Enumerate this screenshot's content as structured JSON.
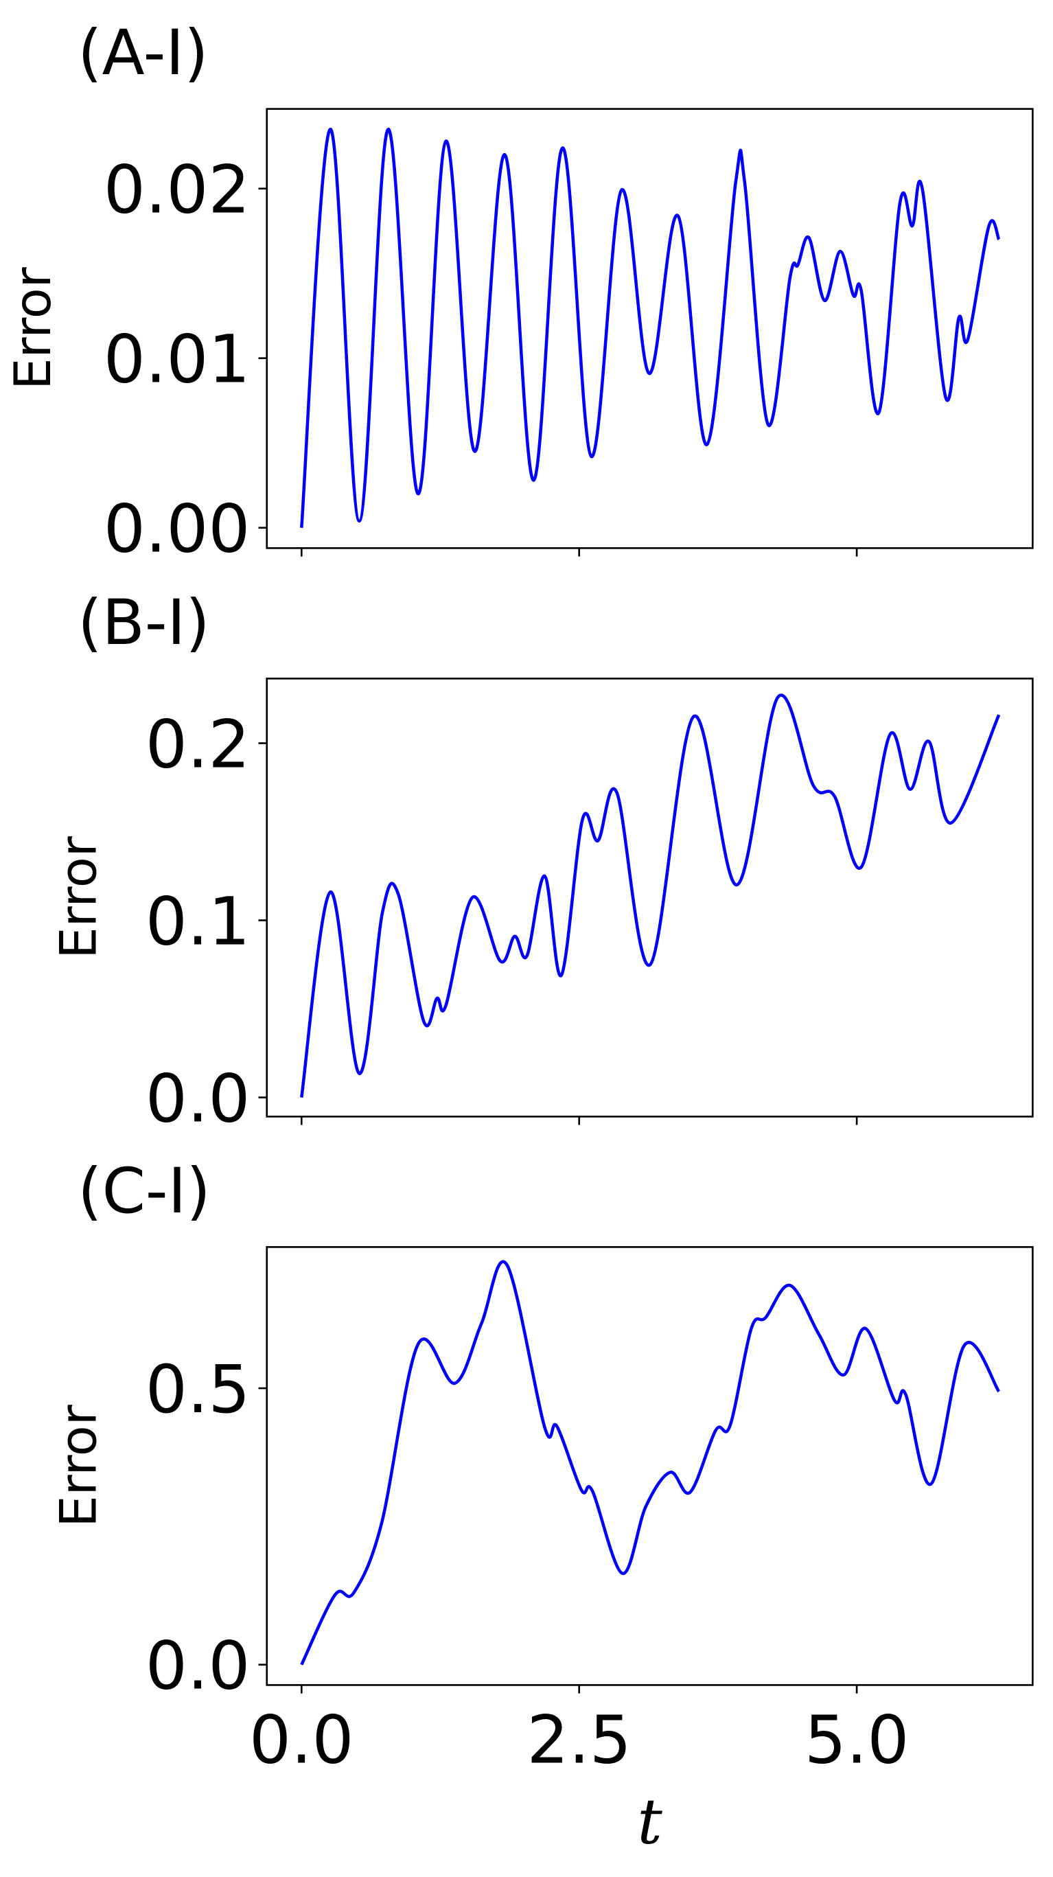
{
  "chart_data": [
    {
      "type": "line",
      "title": "(A-I)",
      "ylabel": "Error",
      "color": "#0000ff",
      "x": [
        0,
        0.26,
        0.52,
        0.78,
        1.05,
        1.3,
        1.56,
        1.83,
        2.09,
        2.35,
        2.61,
        2.88,
        3.13,
        3.39,
        3.65,
        3.91,
        3.99,
        4.2,
        4.4,
        4.47,
        4.57,
        4.71,
        4.85,
        4.97,
        5.04,
        5.2,
        5.39,
        5.5,
        5.59,
        5.8,
        5.92,
        6.0,
        6.19,
        6.28
      ],
      "values": [
        0,
        0.0235,
        0.0004,
        0.0235,
        0.002,
        0.0228,
        0.0045,
        0.022,
        0.0028,
        0.0224,
        0.0042,
        0.0199,
        0.0091,
        0.0184,
        0.0049,
        0.0204,
        0.0204,
        0.0061,
        0.0148,
        0.0155,
        0.0171,
        0.0134,
        0.0163,
        0.0137,
        0.014,
        0.0068,
        0.0192,
        0.0178,
        0.02,
        0.0077,
        0.0124,
        0.0111,
        0.0178,
        0.017
      ],
      "xlim": [
        -0.3125,
        6.584
      ],
      "ylim": [
        -0.0012,
        0.0247
      ],
      "xticks": [
        {
          "value": 0,
          "label": "0.0"
        },
        2.5,
        {
          "value": 5,
          "label": "5.0"
        }
      ],
      "yticks": [
        {
          "value": 0,
          "label": "0.00"
        },
        {
          "value": 0.01,
          "label": "0.01"
        },
        {
          "value": 0.02,
          "label": "0.02"
        }
      ]
    },
    {
      "type": "line",
      "title": "(B-I)",
      "ylabel": "Error",
      "color": "#0000ff",
      "x": [
        0,
        0.26,
        0.52,
        0.73,
        0.87,
        1.1,
        1.22,
        1.3,
        1.54,
        1.79,
        1.92,
        2.03,
        2.19,
        2.34,
        2.53,
        2.67,
        2.84,
        3.14,
        3.53,
        3.92,
        4.29,
        4.61,
        4.8,
        5.04,
        5.3,
        5.48,
        5.65,
        5.85,
        6.28
      ],
      "values": [
        0,
        0.116,
        0.0135,
        0.105,
        0.115,
        0.043,
        0.056,
        0.052,
        0.113,
        0.077,
        0.091,
        0.08,
        0.125,
        0.069,
        0.157,
        0.145,
        0.172,
        0.075,
        0.215,
        0.12,
        0.226,
        0.176,
        0.17,
        0.13,
        0.205,
        0.174,
        0.201,
        0.155,
        0.216
      ],
      "xlim": [
        -0.3125,
        6.584
      ],
      "ylim": [
        -0.0108,
        0.2365
      ],
      "xticks": [
        {
          "value": 0,
          "label": "0.0"
        },
        2.5,
        {
          "value": 5,
          "label": "5.0"
        }
      ],
      "yticks": [
        {
          "value": 0,
          "label": "0.0"
        },
        0.1,
        0.2
      ]
    },
    {
      "type": "line",
      "title": "(C-I)",
      "ylabel": "Error",
      "xlabel": "t",
      "color": "#0000ff",
      "x": [
        0,
        0.3,
        0.47,
        0.72,
        1.05,
        1.38,
        1.62,
        1.85,
        2.19,
        2.3,
        2.52,
        2.62,
        2.89,
        3.1,
        3.32,
        3.5,
        3.73,
        3.86,
        4.05,
        4.18,
        4.4,
        4.66,
        4.88,
        5.08,
        5.34,
        5.44,
        5.67,
        5.97,
        6.28
      ],
      "values": [
        0,
        0.126,
        0.13,
        0.255,
        0.58,
        0.509,
        0.617,
        0.723,
        0.429,
        0.431,
        0.316,
        0.314,
        0.165,
        0.286,
        0.348,
        0.312,
        0.424,
        0.433,
        0.608,
        0.628,
        0.686,
        0.597,
        0.524,
        0.608,
        0.478,
        0.489,
        0.327,
        0.578,
        0.494
      ],
      "xlim": [
        -0.3125,
        6.584
      ],
      "ylim": [
        -0.0368,
        0.7554
      ],
      "xticks": [
        {
          "value": 0,
          "label": "0.0"
        },
        2.5,
        {
          "value": 5,
          "label": "5.0"
        }
      ],
      "yticks": [
        {
          "value": 0,
          "label": "0.0"
        },
        0.5
      ]
    }
  ]
}
